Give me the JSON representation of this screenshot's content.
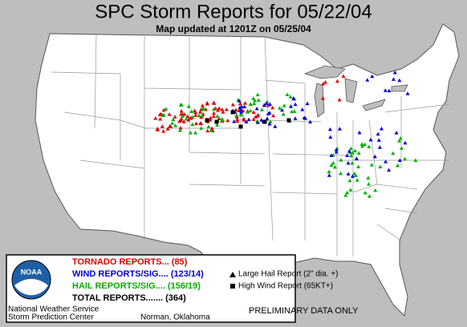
{
  "header": {
    "title": "SPC Storm Reports for 05/22/04",
    "subtitle": "Map updated at 1201Z on 05/25/04"
  },
  "legend": {
    "tornado": "TORNADO REPORTS... (85)",
    "wind": "WIND REPORTS/SIG.... (123/14)",
    "hail": "HAIL REPORTS/SIG.... (156/19)",
    "total": "TOTAL REPORTS....... (364)"
  },
  "symbols": {
    "hail": "Large Hail Report (2\" dia. +)",
    "wind": "High Wind Report (65KT+)"
  },
  "logo": "NOAA",
  "footer": {
    "agency": "National Weather Service",
    "center": "Storm Prediction Center",
    "location": "Norman, Oklahoma",
    "note": "PRELIMINARY DATA ONLY"
  }
}
